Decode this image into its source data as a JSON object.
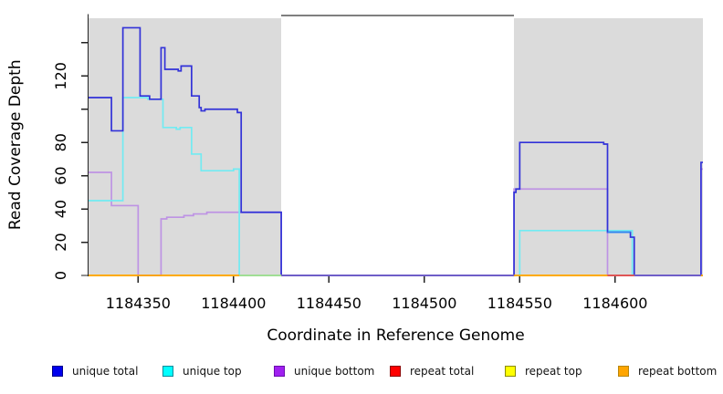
{
  "chart_data": {
    "type": "line",
    "subtype": "step-coverage-plot",
    "title": "",
    "xlabel": "Coordinate in Reference Genome",
    "ylabel": "Read Coverage Depth",
    "xlim": [
      1184324,
      1184646
    ],
    "ylim": [
      0,
      157
    ],
    "grid": false,
    "x_ticks": [
      {
        "v": 1184350,
        "label": "1184350"
      },
      {
        "v": 1184400,
        "label": "1184400"
      },
      {
        "v": 1184450,
        "label": "1184450"
      },
      {
        "v": 1184500,
        "label": "1184500"
      },
      {
        "v": 1184550,
        "label": "1184550"
      },
      {
        "v": 1184600,
        "label": "1184600"
      }
    ],
    "y_ticks": [
      {
        "v": 0,
        "label": "0"
      },
      {
        "v": 20,
        "label": "20"
      },
      {
        "v": 40,
        "label": "40"
      },
      {
        "v": 60,
        "label": "60"
      },
      {
        "v": 80,
        "label": "80"
      },
      {
        "v": 100,
        "label": ""
      },
      {
        "v": 120,
        "label": "120"
      },
      {
        "v": 140,
        "label": ""
      }
    ],
    "shaded_regions": [
      {
        "x1": 1184324,
        "x2": 1184425,
        "color": "#dbdbdb"
      },
      {
        "x1": 1184547,
        "x2": 1184646,
        "color": "#dbdbdb"
      }
    ],
    "frame_top_segment": {
      "x1": 1184425,
      "x2": 1184547,
      "color": "#7f7f7f"
    },
    "series": [
      {
        "name": "repeat total",
        "color": "#e03030",
        "points": [
          [
            1184324,
            0
          ],
          [
            1184646,
            0
          ]
        ]
      },
      {
        "name": "repeat top",
        "color": "#ffff00",
        "points": [
          [
            1184324,
            0
          ],
          [
            1184646,
            0
          ]
        ]
      },
      {
        "name": "unique bottom",
        "color": "#be93e4",
        "points": [
          [
            1184324,
            62
          ],
          [
            1184336,
            62
          ],
          [
            1184336,
            42
          ],
          [
            1184350,
            42
          ],
          [
            1184350,
            0
          ],
          [
            1184362,
            0
          ],
          [
            1184362,
            34
          ],
          [
            1184365,
            34
          ],
          [
            1184365,
            35
          ],
          [
            1184374,
            35
          ],
          [
            1184374,
            36
          ],
          [
            1184379,
            36
          ],
          [
            1184379,
            37
          ],
          [
            1184386,
            37
          ],
          [
            1184386,
            38
          ],
          [
            1184425,
            38
          ],
          [
            1184425,
            0
          ],
          [
            1184547,
            0
          ],
          [
            1184547,
            52
          ],
          [
            1184596,
            52
          ],
          [
            1184596,
            0
          ],
          [
            1184645,
            0
          ],
          [
            1184645,
            64
          ],
          [
            1184646,
            64
          ]
        ]
      },
      {
        "name": "unique top",
        "color": "#72ebf2",
        "points": [
          [
            1184324,
            45
          ],
          [
            1184342,
            45
          ],
          [
            1184342,
            107
          ],
          [
            1184355,
            107
          ],
          [
            1184355,
            106
          ],
          [
            1184363,
            106
          ],
          [
            1184363,
            89
          ],
          [
            1184370,
            89
          ],
          [
            1184370,
            88
          ],
          [
            1184372,
            88
          ],
          [
            1184372,
            89
          ],
          [
            1184378,
            89
          ],
          [
            1184378,
            73
          ],
          [
            1184383,
            73
          ],
          [
            1184383,
            63
          ],
          [
            1184400,
            63
          ],
          [
            1184400,
            64
          ],
          [
            1184403,
            64
          ],
          [
            1184403,
            0
          ],
          [
            1184550,
            0
          ],
          [
            1184550,
            27
          ],
          [
            1184609,
            27
          ],
          [
            1184609,
            0
          ],
          [
            1184646,
            0
          ]
        ]
      },
      {
        "name": "unique total",
        "color": "#3232d8",
        "points": [
          [
            1184324,
            107
          ],
          [
            1184336,
            107
          ],
          [
            1184336,
            87
          ],
          [
            1184342,
            87
          ],
          [
            1184342,
            149
          ],
          [
            1184351,
            149
          ],
          [
            1184351,
            108
          ],
          [
            1184356,
            108
          ],
          [
            1184356,
            106
          ],
          [
            1184362,
            106
          ],
          [
            1184362,
            137
          ],
          [
            1184364,
            137
          ],
          [
            1184364,
            124
          ],
          [
            1184371,
            124
          ],
          [
            1184371,
            123
          ],
          [
            1184372.5,
            123
          ],
          [
            1184372.5,
            126
          ],
          [
            1184378,
            126
          ],
          [
            1184378,
            108
          ],
          [
            1184382,
            108
          ],
          [
            1184382,
            101
          ],
          [
            1184383,
            101
          ],
          [
            1184383,
            99
          ],
          [
            1184385,
            99
          ],
          [
            1184385,
            100
          ],
          [
            1184402,
            100
          ],
          [
            1184402,
            98
          ],
          [
            1184404,
            98
          ],
          [
            1184404,
            38
          ],
          [
            1184425,
            38
          ],
          [
            1184425,
            0
          ],
          [
            1184547,
            0
          ],
          [
            1184547,
            50
          ],
          [
            1184548,
            50
          ],
          [
            1184548,
            52
          ],
          [
            1184550,
            52
          ],
          [
            1184550,
            80
          ],
          [
            1184594,
            80
          ],
          [
            1184594,
            79
          ],
          [
            1184596,
            79
          ],
          [
            1184596,
            26
          ],
          [
            1184608,
            26
          ],
          [
            1184608,
            23
          ],
          [
            1184610,
            23
          ],
          [
            1184610,
            0
          ],
          [
            1184645,
            0
          ],
          [
            1184645,
            68
          ],
          [
            1184646,
            68
          ]
        ]
      },
      {
        "name": "repeat bottom",
        "color": "#ffa500",
        "points": [
          [
            1184324,
            0
          ],
          [
            1184646,
            0
          ]
        ]
      }
    ],
    "zero_line_overlays": [
      {
        "x1": 1184403,
        "x2": 1184425,
        "color": "#97e5a4"
      },
      {
        "x1": 1184425,
        "x2": 1184547,
        "color": "#6157de"
      },
      {
        "x1": 1184596,
        "x2": 1184610,
        "color": "#dc4a5c"
      },
      {
        "x1": 1184610,
        "x2": 1184645,
        "color": "#6157de"
      }
    ],
    "segment_overlays": [
      {
        "x1": 1184596,
        "x2": 1184608,
        "y": 26,
        "color": "#2e86f0"
      }
    ],
    "legend": [
      {
        "label": "unique total",
        "fill": "#0000ee",
        "border": "#00008b"
      },
      {
        "label": "unique top",
        "fill": "#00ffff",
        "border": "#008b9b"
      },
      {
        "label": "unique bottom",
        "fill": "#a020f0",
        "border": "#6a0dad"
      },
      {
        "label": "repeat total",
        "fill": "#ff0000",
        "border": "#8b0000"
      },
      {
        "label": "repeat top",
        "fill": "#ffff00",
        "border": "#8b8b00"
      },
      {
        "label": "repeat bottom",
        "fill": "#ffa500",
        "border": "#b8860b"
      }
    ],
    "legend_position": "bottom"
  }
}
